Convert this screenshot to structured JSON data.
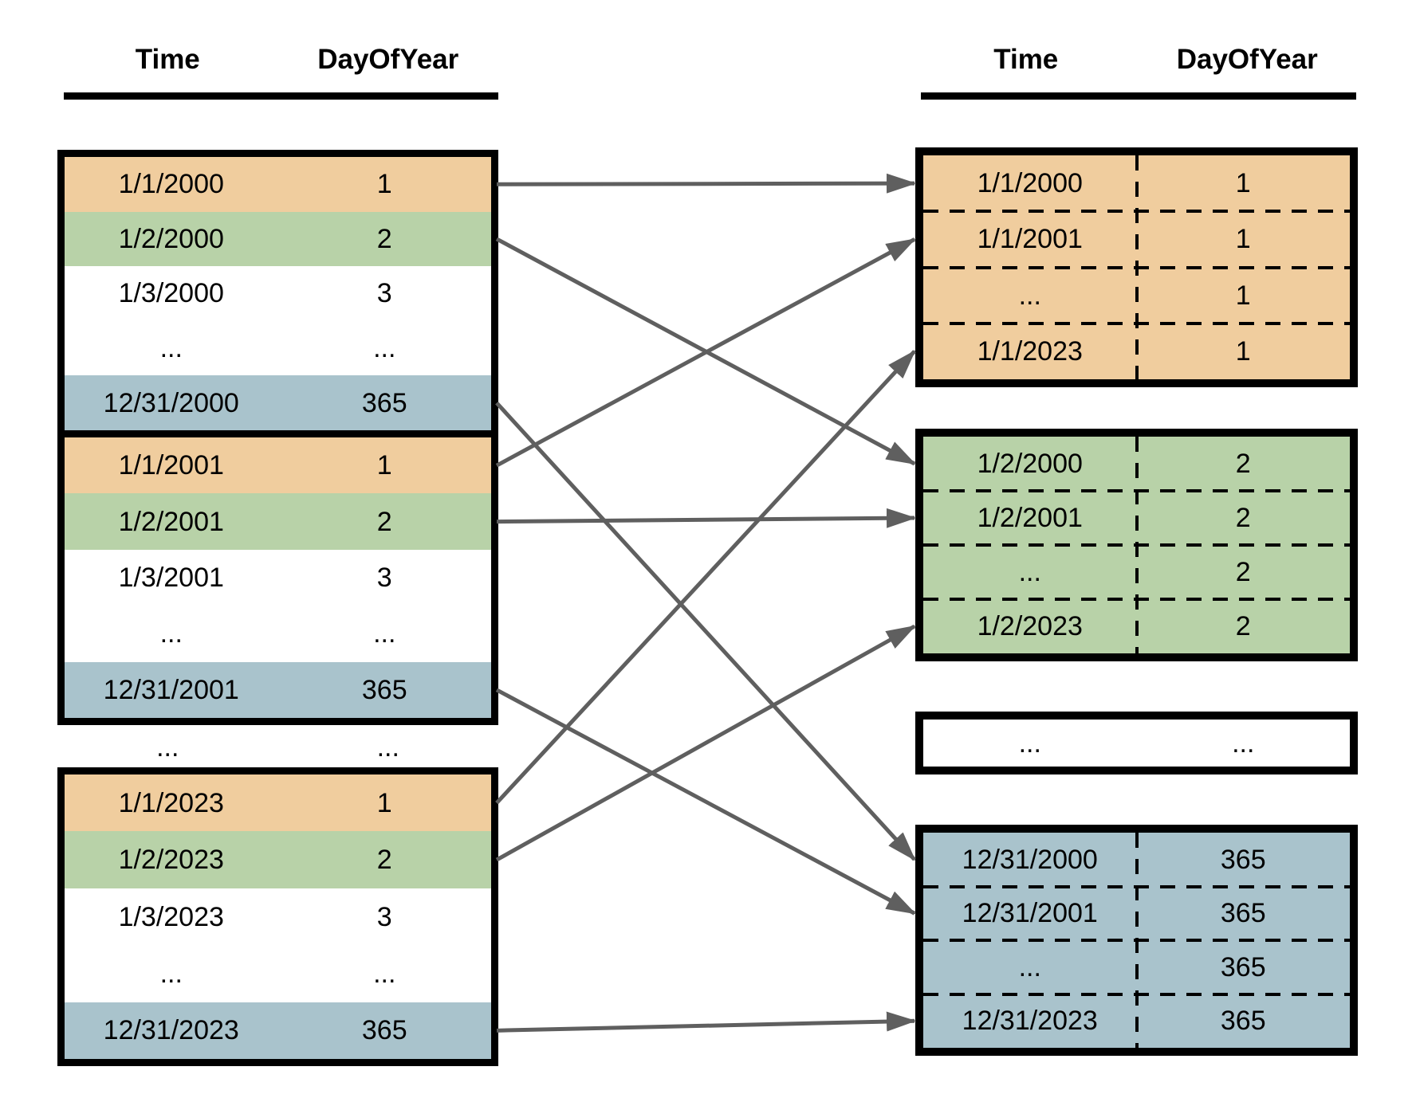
{
  "headers": {
    "left": {
      "time": "Time",
      "day": "DayOfYear"
    },
    "right": {
      "time": "Time",
      "day": "DayOfYear"
    }
  },
  "colors": {
    "orange": "#f0cd9e",
    "green": "#b8d2a8",
    "blue": "#a9c3cc",
    "white": "#ffffff",
    "arrow": "#5f5f5f",
    "border": "#000000"
  },
  "left_tables": [
    {
      "id": "t2000",
      "rows": [
        {
          "time": "1/1/2000",
          "day": "1",
          "color": "orange"
        },
        {
          "time": "1/2/2000",
          "day": "2",
          "color": "green"
        },
        {
          "time": "1/3/2000",
          "day": "3",
          "color": "white"
        },
        {
          "time": "...",
          "day": "...",
          "color": "white"
        },
        {
          "time": "12/31/2000",
          "day": "365",
          "color": "blue"
        }
      ]
    },
    {
      "id": "t2001",
      "rows": [
        {
          "time": "1/1/2001",
          "day": "1",
          "color": "orange"
        },
        {
          "time": "1/2/2001",
          "day": "2",
          "color": "green"
        },
        {
          "time": "1/3/2001",
          "day": "3",
          "color": "white"
        },
        {
          "time": "...",
          "day": "...",
          "color": "white"
        },
        {
          "time": "12/31/2001",
          "day": "365",
          "color": "blue"
        }
      ]
    },
    {
      "id": "t2023",
      "rows": [
        {
          "time": "1/1/2023",
          "day": "1",
          "color": "orange"
        },
        {
          "time": "1/2/2023",
          "day": "2",
          "color": "green"
        },
        {
          "time": "1/3/2023",
          "day": "3",
          "color": "white"
        },
        {
          "time": "...",
          "day": "...",
          "color": "white"
        },
        {
          "time": "12/31/2023",
          "day": "365",
          "color": "blue"
        }
      ]
    }
  ],
  "between_rows": {
    "time": "...",
    "day": "..."
  },
  "right_tables": [
    {
      "id": "day1",
      "color": "orange",
      "divider": true,
      "rows": [
        {
          "time": "1/1/2000",
          "day": "1"
        },
        {
          "time": "1/1/2001",
          "day": "1"
        },
        {
          "time": "...",
          "day": "1"
        },
        {
          "time": "1/1/2023",
          "day": "1"
        }
      ]
    },
    {
      "id": "day2",
      "color": "green",
      "divider": true,
      "rows": [
        {
          "time": "1/2/2000",
          "day": "2"
        },
        {
          "time": "1/2/2001",
          "day": "2"
        },
        {
          "time": "...",
          "day": "2"
        },
        {
          "time": "1/2/2023",
          "day": "2"
        }
      ]
    },
    {
      "id": "dots",
      "color": "white",
      "divider": false,
      "rows": [
        {
          "time": "...",
          "day": "..."
        }
      ]
    },
    {
      "id": "day365",
      "color": "blue",
      "divider": true,
      "rows": [
        {
          "time": "12/31/2000",
          "day": "365"
        },
        {
          "time": "12/31/2001",
          "day": "365"
        },
        {
          "time": "...",
          "day": "365"
        },
        {
          "time": "12/31/2023",
          "day": "365"
        }
      ]
    }
  ],
  "arrows": [
    {
      "from": "t2000-r0",
      "to": "day1-r0"
    },
    {
      "from": "t2000-r1",
      "to": "day2-r0"
    },
    {
      "from": "t2000-r4",
      "to": "day365-r0"
    },
    {
      "from": "t2001-r0",
      "to": "day1-r1"
    },
    {
      "from": "t2001-r1",
      "to": "day2-r1"
    },
    {
      "from": "t2001-r4",
      "to": "day365-r1"
    },
    {
      "from": "t2023-r0",
      "to": "day1-r3"
    },
    {
      "from": "t2023-r1",
      "to": "day2-r3"
    },
    {
      "from": "t2023-r4",
      "to": "day365-r3"
    }
  ]
}
